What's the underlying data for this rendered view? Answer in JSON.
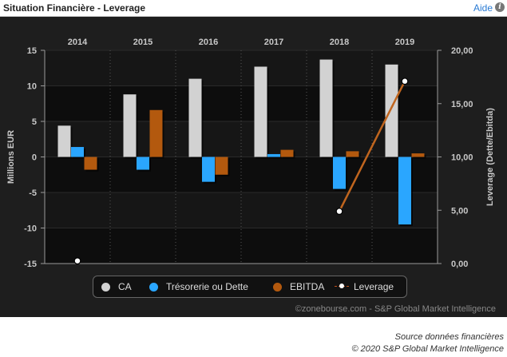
{
  "header": {
    "title": "Situation Financière - Leverage",
    "help_label": "Aide",
    "info_glyph": "i"
  },
  "credit": "©zonebourse.com - S&P Global Market Intelligence",
  "footer": {
    "line1": "Source données financières",
    "line2": "© 2020 S&P Global Market Intelligence"
  },
  "colors": {
    "ca": "#d2d2d2",
    "treso": "#2aa6ff",
    "ebitda": "#b3590e",
    "leverage_line": "#c0651e"
  },
  "chart_data": {
    "type": "bar",
    "categories": [
      "2014",
      "2015",
      "2016",
      "2017",
      "2018",
      "2019"
    ],
    "ylabel": "Millions EUR",
    "y2label": "Leverage (Dette/Ebitda)",
    "ylim": [
      -15,
      15
    ],
    "y_ticks": [
      "15",
      "10",
      "5",
      "0",
      "-5",
      "-10",
      "-15"
    ],
    "y2lim": [
      0,
      20
    ],
    "y2_ticks": [
      "20,00",
      "15,00",
      "10,00",
      "5,00",
      "0,00"
    ],
    "series": [
      {
        "name": "CA",
        "values": [
          4.4,
          8.8,
          11.0,
          12.7,
          13.7,
          13.0
        ]
      },
      {
        "name": "Trésorerie ou Dette",
        "values": [
          1.4,
          -1.8,
          -3.5,
          0.4,
          -4.5,
          -9.5
        ]
      },
      {
        "name": "EBITDA",
        "values": [
          -1.8,
          6.6,
          -2.5,
          1.0,
          0.8,
          0.5
        ]
      },
      {
        "name": "Leverage",
        "axis": "right",
        "values": [
          0.25,
          null,
          null,
          null,
          4.9,
          17.1
        ]
      }
    ],
    "legend_position": "bottom",
    "grid": true
  }
}
